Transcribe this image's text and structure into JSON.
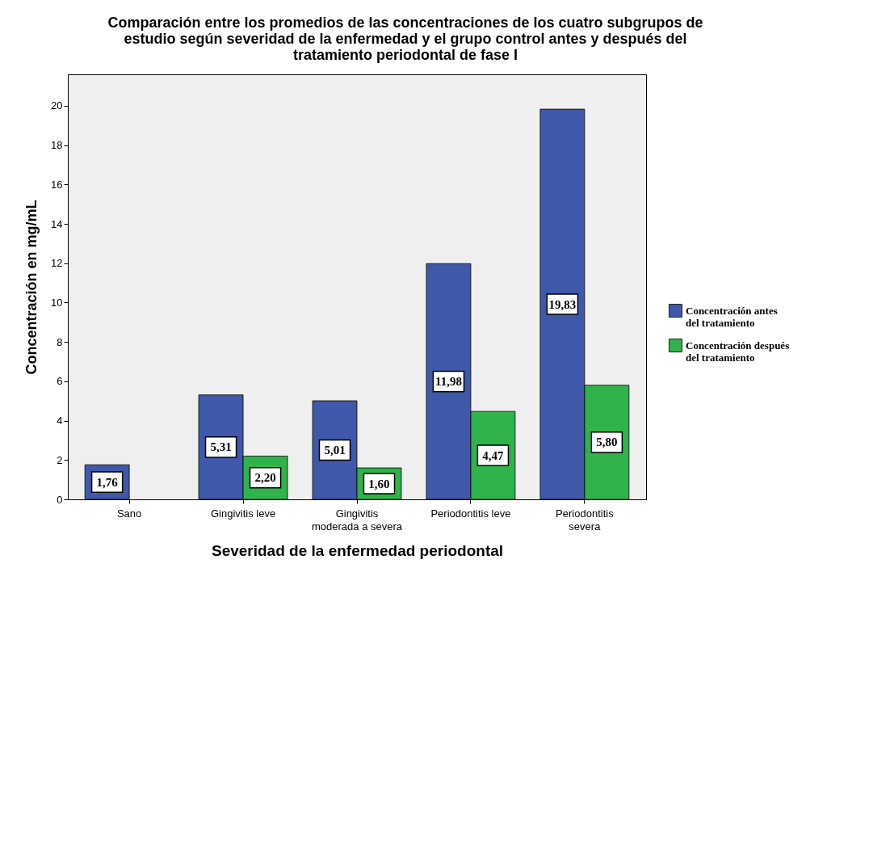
{
  "chart_data": {
    "type": "bar",
    "title": "Comparación entre los promedios de las concentraciones de los cuatro subgrupos de estudio según severidad de la enfermedad y el grupo control antes y después del tratamiento periodontal de fase I",
    "xlabel": "Severidad de la enfermedad periodontal",
    "ylabel": "Concentración en mg/mL",
    "categories": [
      "Sano",
      "Gingivitis leve",
      "Gingivitis moderada a severa",
      "Periodontitis leve",
      "Periodontitis severa"
    ],
    "series": [
      {
        "name": "Concentración antes del tratamiento",
        "color": "#3f58aa",
        "values": [
          1.76,
          5.31,
          5.01,
          11.98,
          19.83
        ],
        "value_labels": [
          "1,76",
          "5,31",
          "5,01",
          "11,98",
          "19,83"
        ]
      },
      {
        "name": "Concentración después del tratamiento",
        "color": "#2fb34a",
        "values": [
          null,
          2.2,
          1.6,
          4.47,
          5.8
        ],
        "value_labels": [
          null,
          "2,20",
          "1,60",
          "4,47",
          "5,80"
        ]
      }
    ],
    "ylim": [
      0,
      21.6
    ],
    "yticks": [
      0,
      2,
      4,
      6,
      8,
      10,
      12,
      14,
      16,
      18,
      20
    ],
    "grid": false,
    "legend": "right"
  }
}
